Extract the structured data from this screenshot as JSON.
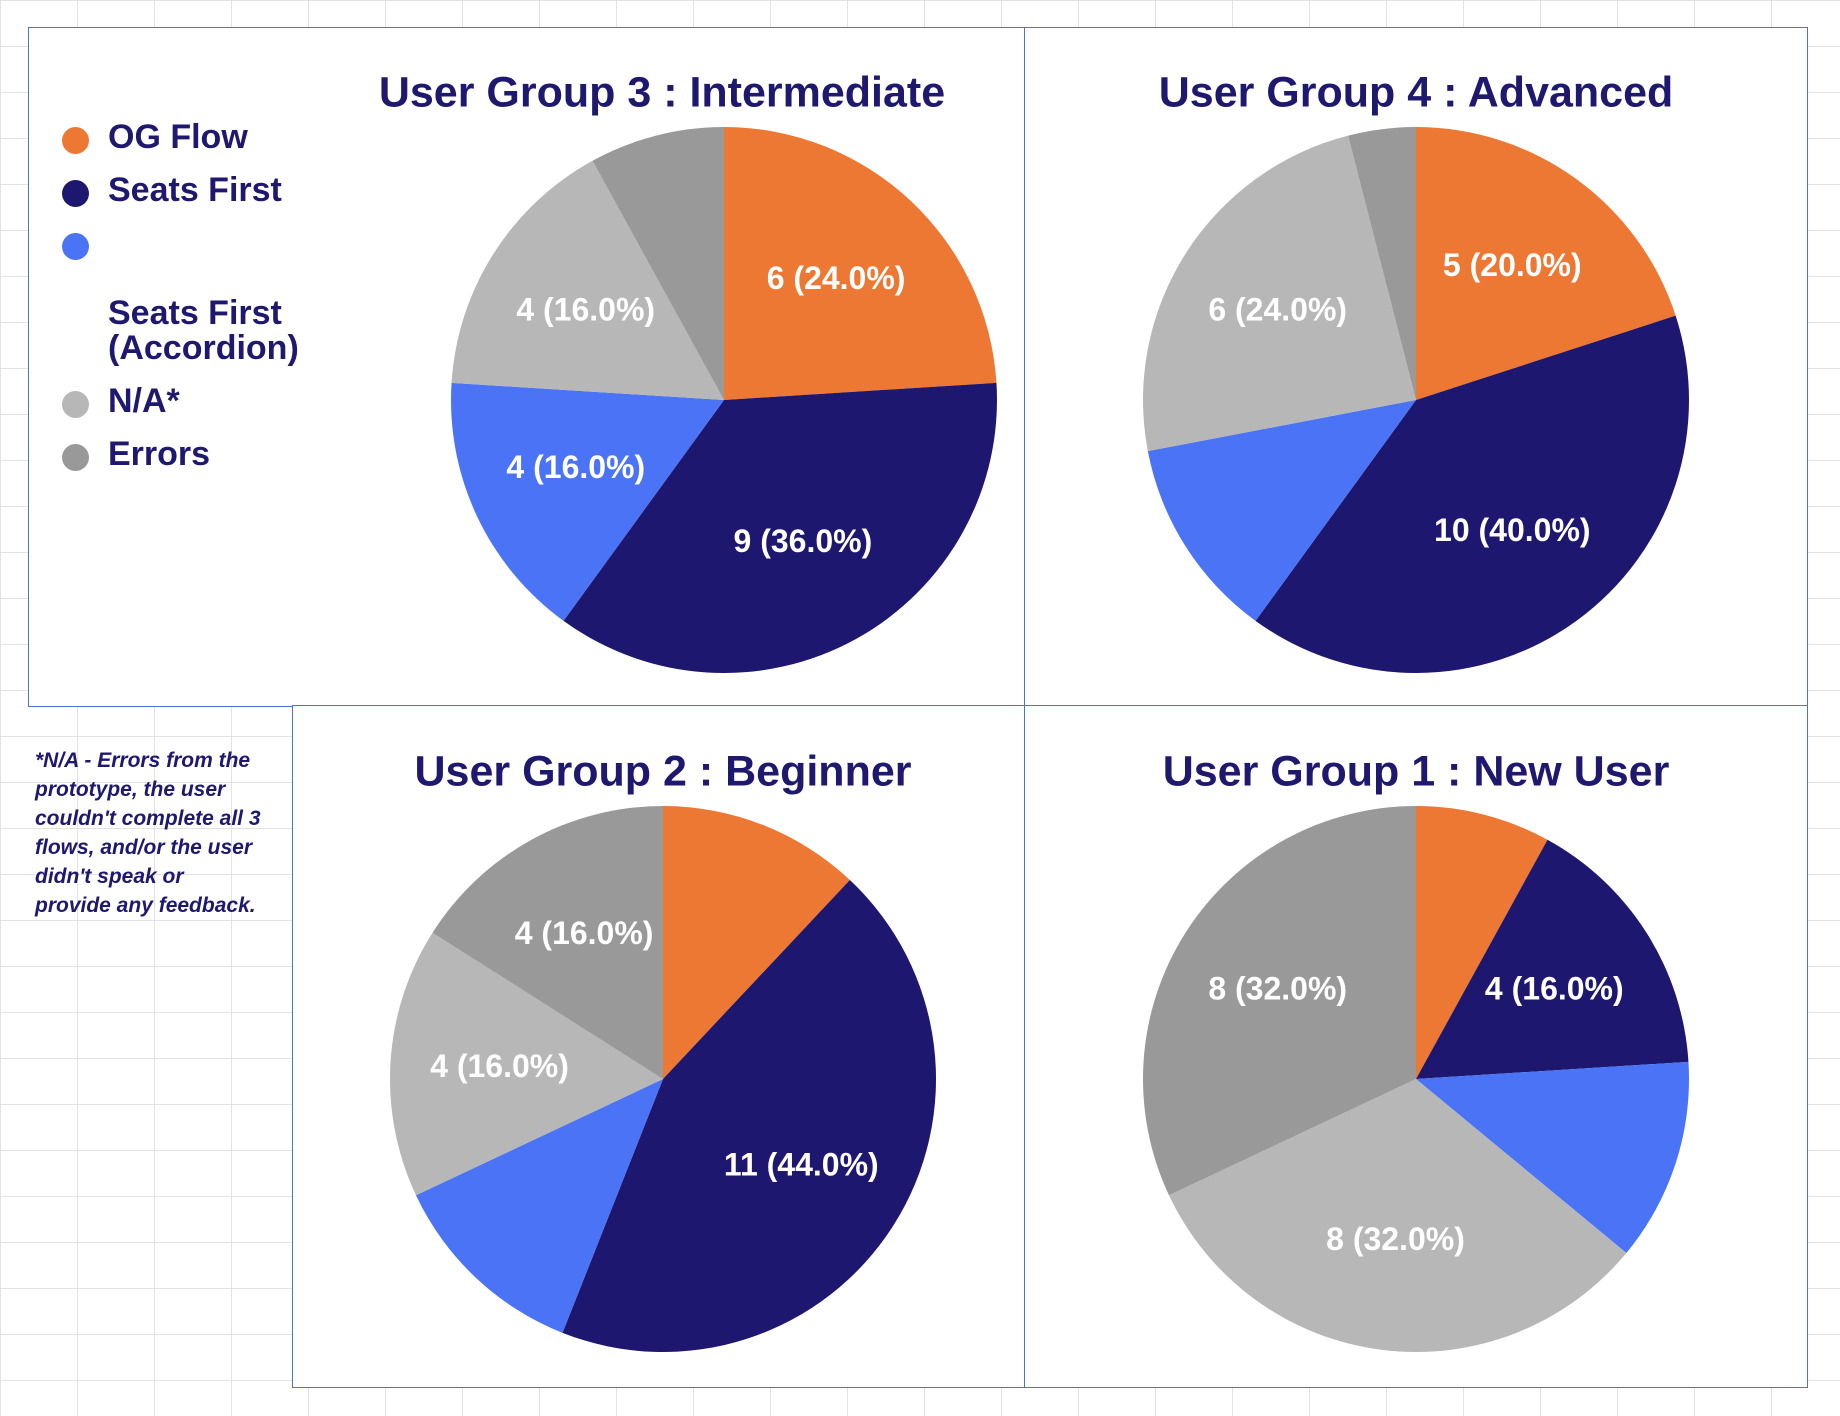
{
  "legend": {
    "items": [
      {
        "label": "OG Flow",
        "color": "#ed7833"
      },
      {
        "label": "Seats First",
        "color": "#1e176f"
      },
      {
        "label": "Seats First\n(Accordion)",
        "color": "#4a74f5"
      },
      {
        "label": "N/A*",
        "color": "#b7b7b7"
      },
      {
        "label": "Errors",
        "color": "#999999"
      }
    ]
  },
  "footnote": "*N/A - Errors from the prototype, the user couldn't complete all 3 flows, and/or the user didn't speak or provide any feedback.",
  "chart_data": [
    {
      "type": "pie",
      "title": "User Group 3 : Intermediate",
      "categories": [
        "OG Flow",
        "Seats First",
        "Seats First (Accordion)",
        "N/A*",
        "Errors"
      ],
      "values": [
        6,
        9,
        4,
        4,
        2
      ],
      "labels": [
        "6 (24.0%)",
        "9 (36.0%)",
        "4 (16.0%)",
        "4 (16.0%)",
        ""
      ]
    },
    {
      "type": "pie",
      "title": "User Group 4 : Advanced",
      "categories": [
        "OG Flow",
        "Seats First",
        "Seats First (Accordion)",
        "N/A*",
        "Errors"
      ],
      "values": [
        5,
        10,
        3,
        6,
        1
      ],
      "labels": [
        "5 (20.0%)",
        "10 (40.0%)",
        "",
        "6 (24.0%)",
        ""
      ]
    },
    {
      "type": "pie",
      "title": "User Group 2 : Beginner",
      "categories": [
        "OG Flow",
        "Seats First",
        "Seats First (Accordion)",
        "N/A*",
        "Errors"
      ],
      "values": [
        3,
        11,
        3,
        4,
        4
      ],
      "labels": [
        "",
        "11 (44.0%)",
        "",
        "4 (16.0%)",
        "4 (16.0%)"
      ]
    },
    {
      "type": "pie",
      "title": "User Group 1 : New User",
      "categories": [
        "OG Flow",
        "Seats First",
        "Seats First (Accordion)",
        "N/A*",
        "Errors"
      ],
      "values": [
        2,
        4,
        3,
        8,
        8
      ],
      "labels": [
        "",
        "4 (16.0%)",
        "",
        "8 (32.0%)",
        "8 (32.0%)"
      ]
    }
  ]
}
